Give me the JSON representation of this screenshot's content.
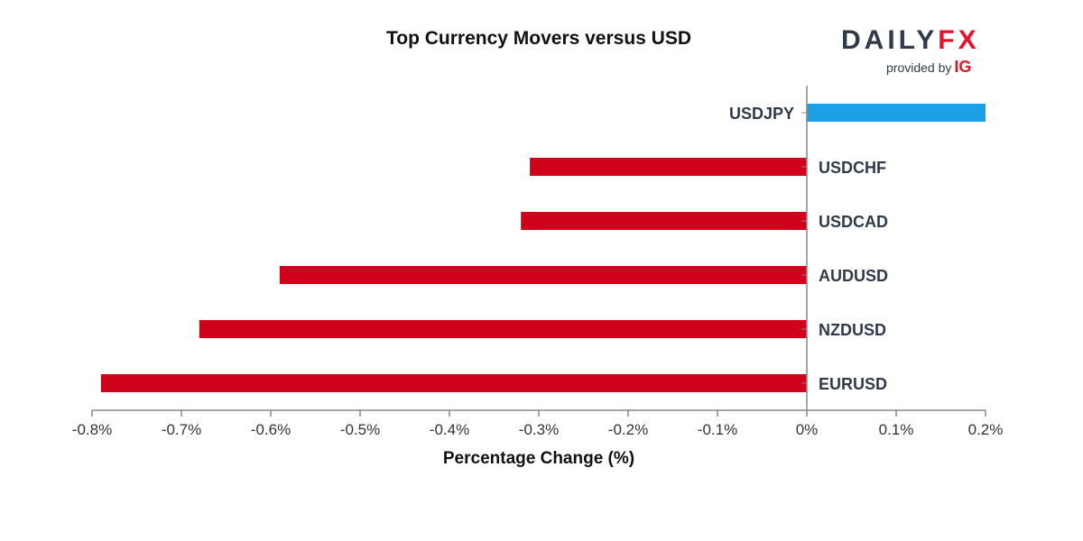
{
  "logo": {
    "wordmark_main": "DAILY",
    "wordmark_accent": "FX",
    "provided_by": "provided by",
    "partner": "IG"
  },
  "colors": {
    "positive": "#1ea0e6",
    "negative": "#d0021b",
    "axis": "#888888",
    "brand_dark": "#2f3a4b",
    "brand_red": "#e8132a"
  },
  "chart_data": {
    "type": "bar",
    "orientation": "horizontal",
    "title": "Top Currency Movers versus USD",
    "xlabel": "Percentage Change (%)",
    "ylabel": "",
    "xlim": [
      -0.8,
      0.2
    ],
    "xticks": [
      -0.8,
      -0.7,
      -0.6,
      -0.5,
      -0.4,
      -0.3,
      -0.2,
      -0.1,
      0,
      0.1,
      0.2
    ],
    "xtick_labels": [
      "-0.8%",
      "-0.7%",
      "-0.6%",
      "-0.5%",
      "-0.4%",
      "-0.3%",
      "-0.2%",
      "-0.1%",
      "0%",
      "0.1%",
      "0.2%"
    ],
    "categories": [
      "USDJPY",
      "USDCHF",
      "USDCAD",
      "AUDUSD",
      "NZDUSD",
      "EURUSD"
    ],
    "values": [
      0.2,
      -0.31,
      -0.32,
      -0.59,
      -0.68,
      -0.79
    ],
    "grid": false,
    "legend": "none"
  }
}
